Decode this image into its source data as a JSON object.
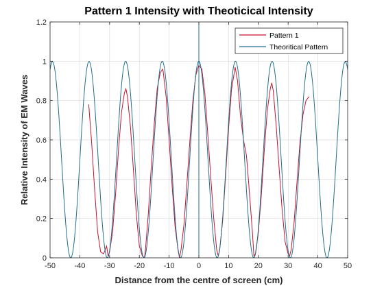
{
  "chart_data": {
    "type": "line",
    "title": "Pattern 1 Intensity with Theoticical Intensity",
    "xlabel": "Distance from the centre of screen (cm)",
    "ylabel": "Relative Intensity of EM Waves",
    "xlim": [
      -50,
      50
    ],
    "ylim": [
      0,
      1.2
    ],
    "xticks": [
      -50,
      -40,
      -30,
      -20,
      -10,
      0,
      10,
      20,
      30,
      40,
      50
    ],
    "yticks": [
      0,
      0.2,
      0.4,
      0.6,
      0.8,
      1,
      1.2
    ],
    "xtick_labels": [
      "-50",
      "-40",
      "-30",
      "-20",
      "-10",
      "0",
      "10",
      "20",
      "30",
      "40",
      "50"
    ],
    "ytick_labels": [
      "0",
      "0.2",
      "0.4",
      "0.6",
      "0.8",
      "1",
      "1.2"
    ],
    "grid": true,
    "legend_position": "top-right",
    "series": [
      {
        "name": "Pattern 1",
        "color": "#c8102e",
        "x": [
          -37,
          -36,
          -35,
          -34,
          -33,
          -32,
          -31,
          -30.5,
          -30,
          -29,
          -28,
          -27,
          -26,
          -25,
          -24.5,
          -24,
          -23,
          -22,
          -21,
          -20,
          -19,
          -18.3,
          -18,
          -17,
          -16,
          -15,
          -14,
          -13,
          -12.2,
          -12,
          -11,
          -10,
          -9,
          -8,
          -7,
          -6.5,
          -6,
          -5,
          -4,
          -3,
          -2,
          -1,
          0,
          1,
          2,
          3,
          4,
          5,
          6,
          6.5,
          7,
          8,
          9,
          10,
          11,
          12.2,
          13,
          14,
          15,
          16,
          17,
          18,
          18.5,
          19,
          20,
          21,
          22,
          23,
          24,
          24.5,
          25,
          26,
          27,
          28,
          29,
          30,
          30.5,
          31,
          32,
          33,
          34,
          35,
          36,
          37
        ],
        "y": [
          0.78,
          0.58,
          0.34,
          0.13,
          0.03,
          0.02,
          0.06,
          0.01,
          0.03,
          0.13,
          0.32,
          0.55,
          0.74,
          0.84,
          0.86,
          0.82,
          0.67,
          0.45,
          0.22,
          0.06,
          0.01,
          0.0,
          0.03,
          0.22,
          0.46,
          0.68,
          0.86,
          0.94,
          0.96,
          0.95,
          0.82,
          0.6,
          0.37,
          0.16,
          0.04,
          0.0,
          0.04,
          0.17,
          0.38,
          0.6,
          0.8,
          0.93,
          0.98,
          0.96,
          0.84,
          0.63,
          0.41,
          0.2,
          0.04,
          0.01,
          0.04,
          0.19,
          0.42,
          0.66,
          0.86,
          0.97,
          0.9,
          0.72,
          0.6,
          0.52,
          0.33,
          0.13,
          0.01,
          0.02,
          0.13,
          0.32,
          0.55,
          0.75,
          0.86,
          0.89,
          0.85,
          0.67,
          0.45,
          0.24,
          0.08,
          0.02,
          0.01,
          0.04,
          0.18,
          0.39,
          0.59,
          0.73,
          0.8,
          0.82
        ]
      },
      {
        "name": "Theoritical Pattern",
        "color": "#1f6f8b",
        "function": "y = cos^2(pi*x/12.3) * sinc^2(x/2000)",
        "x_range": [
          -50,
          50
        ]
      }
    ]
  }
}
